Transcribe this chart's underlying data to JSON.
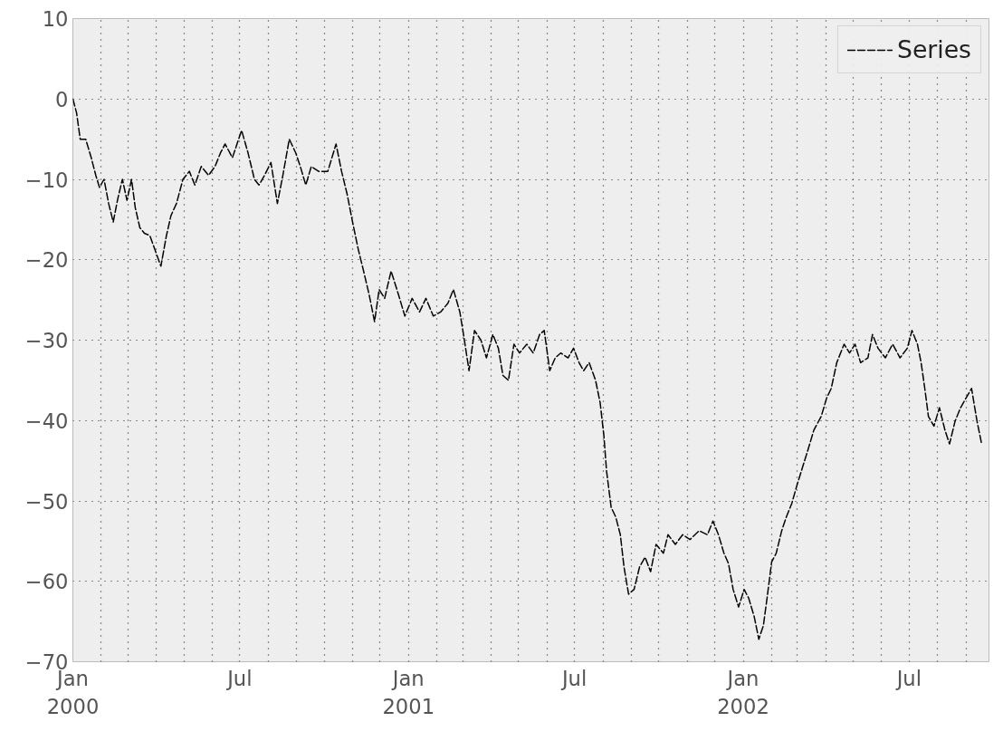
{
  "chart_data": {
    "type": "line",
    "line_style": "dashed",
    "marker": "none",
    "grid": true,
    "legend": "top right",
    "xlim": [
      "2000-01-01",
      "2002-09-26"
    ],
    "ylim": [
      -70,
      10
    ],
    "yticks": [
      {
        "value": -70,
        "label": "−70"
      },
      {
        "value": -60,
        "label": "−60"
      },
      {
        "value": -50,
        "label": "−50"
      },
      {
        "value": -40,
        "label": "−40"
      },
      {
        "value": -30,
        "label": "−30"
      },
      {
        "value": -20,
        "label": "−20"
      },
      {
        "value": -10,
        "label": "−10"
      },
      0,
      10
    ],
    "xticks": [
      {
        "value": "2000-01-01",
        "label": "Jan\n2000"
      },
      {
        "value": "2000-02-01",
        "label": null
      },
      {
        "value": "2000-03-01",
        "label": null
      },
      {
        "value": "2000-04-01",
        "label": null
      },
      {
        "value": "2000-05-01",
        "label": null
      },
      {
        "value": "2000-06-01",
        "label": null
      },
      {
        "value": "2000-07-01",
        "label": "Jul"
      },
      {
        "value": "2000-08-01",
        "label": null
      },
      {
        "value": "2000-09-01",
        "label": null
      },
      {
        "value": "2000-10-01",
        "label": null
      },
      {
        "value": "2000-11-01",
        "label": null
      },
      {
        "value": "2000-12-01",
        "label": null
      },
      {
        "value": "2001-01-01",
        "label": "Jan\n2001"
      },
      {
        "value": "2001-02-01",
        "label": null
      },
      {
        "value": "2001-03-01",
        "label": null
      },
      {
        "value": "2001-04-01",
        "label": null
      },
      {
        "value": "2001-05-01",
        "label": null
      },
      {
        "value": "2001-06-01",
        "label": null
      },
      {
        "value": "2001-07-01",
        "label": "Jul"
      },
      {
        "value": "2001-08-01",
        "label": null
      },
      {
        "value": "2001-09-01",
        "label": null
      },
      {
        "value": "2001-10-01",
        "label": null
      },
      {
        "value": "2001-11-01",
        "label": null
      },
      {
        "value": "2001-12-01",
        "label": null
      },
      {
        "value": "2002-01-01",
        "label": "Jan\n2002"
      },
      {
        "value": "2002-02-01",
        "label": null
      },
      {
        "value": "2002-03-01",
        "label": null
      },
      {
        "value": "2002-04-01",
        "label": null
      },
      {
        "value": "2002-05-01",
        "label": null
      },
      {
        "value": "2002-06-01",
        "label": null
      },
      {
        "value": "2002-07-01",
        "label": "Jul"
      },
      {
        "value": "2002-08-01",
        "label": null
      },
      {
        "value": "2002-09-01",
        "label": null
      }
    ],
    "series": [
      {
        "name": "Series",
        "color": "#000000",
        "x": [
          "2000-01-01",
          "2000-01-05",
          "2000-01-09",
          "2000-01-15",
          "2000-01-21",
          "2000-01-26",
          "2000-01-30",
          "2000-02-04",
          "2000-02-09",
          "2000-02-14",
          "2000-02-19",
          "2000-02-24",
          "2000-02-29",
          "2000-03-05",
          "2000-03-09",
          "2000-03-14",
          "2000-03-19",
          "2000-03-25",
          "2000-03-30",
          "2000-04-06",
          "2000-04-12",
          "2000-04-17",
          "2000-04-23",
          "2000-04-30",
          "2000-05-07",
          "2000-05-13",
          "2000-05-20",
          "2000-05-28",
          "2000-06-04",
          "2000-06-10",
          "2000-06-15",
          "2000-06-23",
          "2000-07-03",
          "2000-07-10",
          "2000-07-17",
          "2000-07-22",
          "2000-07-28",
          "2000-08-04",
          "2000-08-11",
          "2000-08-17",
          "2000-08-24",
          "2000-08-31",
          "2000-09-05",
          "2000-09-11",
          "2000-09-17",
          "2000-09-25",
          "2000-10-05",
          "2000-10-14",
          "2000-10-20",
          "2000-10-26",
          "2000-11-01",
          "2000-11-07",
          "2000-11-13",
          "2000-11-19",
          "2000-11-25",
          "2000-11-30",
          "2000-12-06",
          "2000-12-13",
          "2000-12-21",
          "2000-12-28",
          "2001-01-05",
          "2001-01-13",
          "2001-01-20",
          "2001-01-28",
          "2001-02-05",
          "2001-02-13",
          "2001-02-19",
          "2001-02-26",
          "2001-03-02",
          "2001-03-08",
          "2001-03-14",
          "2001-03-21",
          "2001-03-27",
          "2001-04-03",
          "2001-04-09",
          "2001-04-14",
          "2001-04-20",
          "2001-04-26",
          "2001-05-02",
          "2001-05-10",
          "2001-05-17",
          "2001-05-24",
          "2001-05-29",
          "2001-06-04",
          "2001-06-10",
          "2001-06-16",
          "2001-06-24",
          "2001-06-30",
          "2001-07-06",
          "2001-07-11",
          "2001-07-17",
          "2001-07-24",
          "2001-07-29",
          "2001-08-02",
          "2001-08-05",
          "2001-08-10",
          "2001-08-15",
          "2001-08-20",
          "2001-08-24",
          "2001-08-29",
          "2001-09-04",
          "2001-09-10",
          "2001-09-16",
          "2001-09-22",
          "2001-09-28",
          "2001-10-06",
          "2001-10-11",
          "2001-10-19",
          "2001-10-27",
          "2001-11-04",
          "2001-11-14",
          "2001-11-23",
          "2001-11-29",
          "2001-12-05",
          "2001-12-11",
          "2001-12-16",
          "2001-12-21",
          "2001-12-27",
          "2002-01-02",
          "2002-01-07",
          "2002-01-13",
          "2002-01-18",
          "2002-01-23",
          "2002-01-27",
          "2002-02-01",
          "2002-02-06",
          "2002-02-12",
          "2002-02-17",
          "2002-02-23",
          "2002-03-01",
          "2002-03-07",
          "2002-03-13",
          "2002-03-19",
          "2002-03-27",
          "2002-04-02",
          "2002-04-07",
          "2002-04-13",
          "2002-04-21",
          "2002-04-27",
          "2002-05-03",
          "2002-05-09",
          "2002-05-17",
          "2002-05-22",
          "2002-05-28",
          "2002-06-05",
          "2002-06-13",
          "2002-06-21",
          "2002-06-29",
          "2002-07-04",
          "2002-07-10",
          "2002-07-14",
          "2002-07-18",
          "2002-07-22",
          "2002-07-28",
          "2002-08-03",
          "2002-08-09",
          "2002-08-14",
          "2002-08-20",
          "2002-08-26",
          "2002-09-01",
          "2002-09-07",
          "2002-09-13",
          "2002-09-18"
        ],
        "values": [
          0,
          -1.7,
          -5,
          -5,
          -7.3,
          -9.5,
          -11,
          -10,
          -13,
          -15.3,
          -12.4,
          -10,
          -12.6,
          -10,
          -13.5,
          -16,
          -16.7,
          -17,
          -18.6,
          -20.8,
          -17,
          -14.5,
          -13,
          -10,
          -9,
          -10.7,
          -8.4,
          -9.5,
          -8.4,
          -6.7,
          -5.6,
          -7.3,
          -3.9,
          -6.7,
          -10,
          -10.7,
          -9.5,
          -7.9,
          -13,
          -9.5,
          -5,
          -6.7,
          -8.4,
          -10.7,
          -8.4,
          -9,
          -9,
          -5.6,
          -9,
          -11.8,
          -15.3,
          -18.6,
          -21.4,
          -24.3,
          -27.7,
          -23.7,
          -24.8,
          -21.4,
          -24.3,
          -27,
          -24.8,
          -26.5,
          -24.8,
          -27,
          -26.5,
          -25.4,
          -23.7,
          -26.5,
          -29.3,
          -33.8,
          -28.8,
          -30,
          -32.2,
          -29.3,
          -31,
          -34.4,
          -35,
          -30.5,
          -31.6,
          -30.5,
          -31.6,
          -29.3,
          -28.8,
          -33.8,
          -32.2,
          -31.6,
          -32.2,
          -31,
          -32.8,
          -33.8,
          -32.8,
          -35,
          -37.8,
          -41.8,
          -46.3,
          -50.8,
          -52,
          -54.2,
          -58.2,
          -61.6,
          -61,
          -58.2,
          -57,
          -58.8,
          -55.4,
          -56.5,
          -54.2,
          -55.4,
          -54.2,
          -54.8,
          -53.7,
          -54.2,
          -52.5,
          -54.2,
          -56.5,
          -57.8,
          -61,
          -63.2,
          -61,
          -62.1,
          -64.4,
          -67.2,
          -65.5,
          -62.1,
          -57.6,
          -56.5,
          -53.7,
          -52,
          -50.3,
          -47.9,
          -45.7,
          -43.5,
          -41.2,
          -39.5,
          -37.2,
          -36,
          -32.8,
          -30.5,
          -31.6,
          -30.5,
          -32.8,
          -32.2,
          -29.3,
          -31,
          -32.2,
          -30.5,
          -32.2,
          -31,
          -28.8,
          -30.5,
          -32.8,
          -36,
          -39.5,
          -40.7,
          -38.4,
          -41.2,
          -42.9,
          -40.1,
          -38.4,
          -37.2,
          -36,
          -40.1,
          -42.9
        ]
      }
    ]
  }
}
